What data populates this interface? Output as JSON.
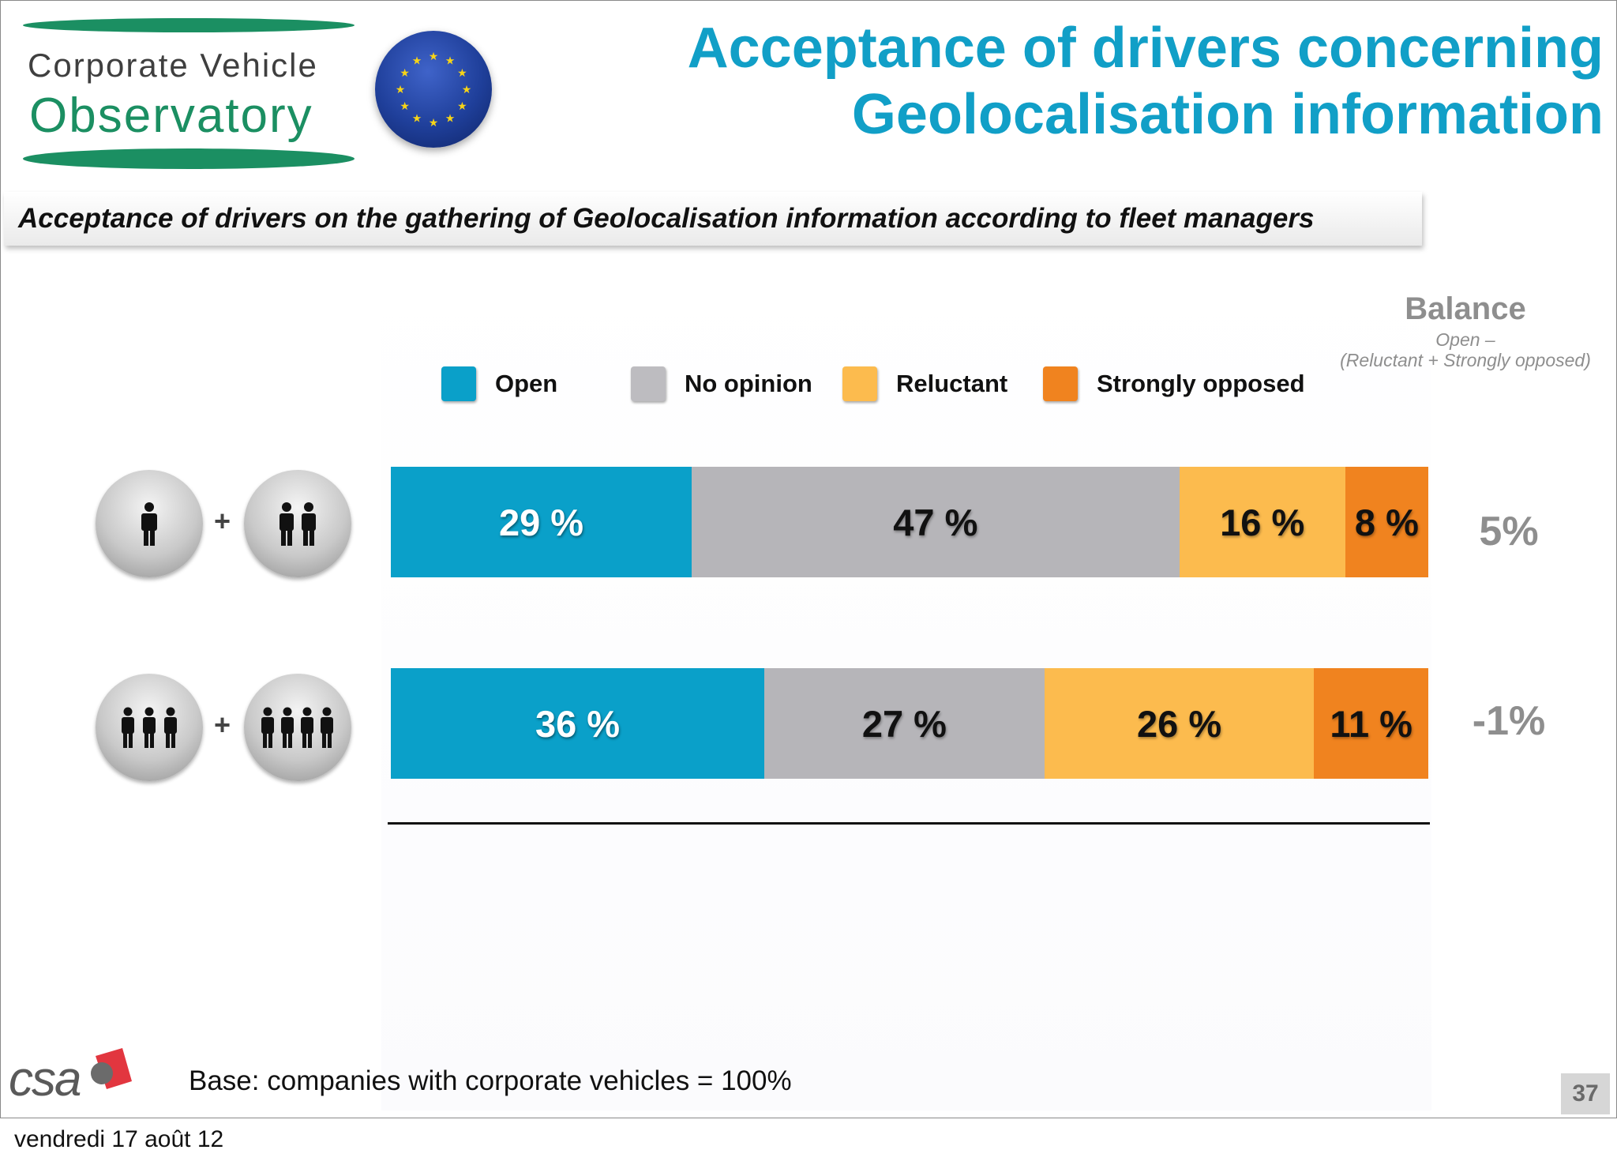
{
  "header": {
    "logo_line1": "Corporate Vehicle",
    "logo_line2": "Observatory",
    "title_line1": "Acceptance of drivers concerning",
    "title_line2": "Geolocalisation information"
  },
  "subtitle": "Acceptance of drivers on the gathering of Geolocalisation information according to fleet managers",
  "balance": {
    "title": "Balance",
    "sub1": "Open –",
    "sub2": "(Reluctant + Strongly opposed)"
  },
  "plus": "+",
  "colors": {
    "open": "#0aa0c9",
    "no_opinion": "#b6b5b9",
    "reluctant": "#fcbb4e",
    "strongly_opposed": "#f0831f",
    "title": "#119fc7",
    "balance": "#8e8e8e"
  },
  "chart_data": {
    "type": "bar",
    "orientation": "horizontal",
    "stacked": true,
    "categories": [
      "1 + 2 persons icon group",
      "3 + 4 persons icon group"
    ],
    "series": [
      {
        "name": "Open",
        "values": [
          29,
          36
        ],
        "labels": [
          "29 %",
          "36 %"
        ]
      },
      {
        "name": "No opinion",
        "values": [
          47,
          27
        ],
        "labels": [
          "47 %",
          "27 %"
        ]
      },
      {
        "name": "Reluctant",
        "values": [
          16,
          26
        ],
        "labels": [
          "16 %",
          "26 %"
        ]
      },
      {
        "name": "Strongly opposed",
        "values": [
          8,
          11
        ],
        "labels": [
          "8 %",
          "11 %"
        ]
      }
    ],
    "balance_values": [
      "5%",
      "-1%"
    ],
    "legend_position": "top",
    "grid": false
  },
  "footer": {
    "csa": "csa",
    "base": "Base: companies with corporate vehicles = 100%",
    "page_number": "37",
    "date": "vendredi 17 août 12"
  }
}
